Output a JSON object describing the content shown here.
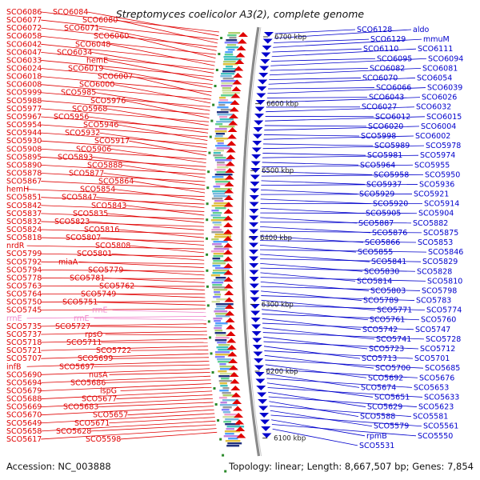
{
  "title": "Streptomyces coelicolor A3(2), complete genome",
  "footer": {
    "accession": "Accession: NC_003888",
    "summary": "Topology: linear; Length: 8,667,507 bp; Genes: 7,854"
  },
  "colors": {
    "left_genes": "#e00000",
    "right_genes": "#0000cc",
    "rna_genes": "#f080c8",
    "backbone": "#8a8a8a",
    "tick": "#2a8a2a"
  },
  "scale_ticks": [
    {
      "label": "6700 kbp",
      "bp": 6700000
    },
    {
      "label": "6600 kbp",
      "bp": 6600000
    },
    {
      "label": "6500 kbp",
      "bp": 6500000
    },
    {
      "label": "6400 kbp",
      "bp": 6400000
    },
    {
      "label": "6300 kbp",
      "bp": 6300000
    },
    {
      "label": "6200 kbp",
      "bp": 6200000
    },
    {
      "label": "6100 kbp",
      "bp": 6100000
    }
  ],
  "left_genes": [
    "SCO6086",
    "SCO6084",
    "SCO6077",
    "SCO6080",
    "SCO6072",
    "SCO6071",
    "SCO6058",
    "SCO6060",
    "SCO6042",
    "SCO6048",
    "SCO6047",
    "SCO6034",
    "SCO6033",
    "hemE",
    "SCO6024",
    "SCO6019",
    "SCO6018",
    "SCO6007",
    "SCO6008",
    "SCO6000",
    "SCO5999",
    "SCO5985",
    "SCO5988",
    "SCO5976",
    "SCO5977",
    "SCO5968",
    "SCO5967",
    "SCO5956",
    "SCO5954",
    "SCO5946",
    "SCO5944",
    "SCO5932",
    "SCO5930",
    "SCO5917",
    "SCO5908",
    "SCO5906",
    "SCO5895",
    "SCO5893",
    "SCO5890",
    "SCO5888",
    "SCO5878",
    "SCO5877",
    "SCO5867",
    "SCO5864",
    "hemH",
    "SCO5854",
    "SCO5851",
    "SCO5847",
    "SCO5842",
    "SCO5843",
    "SCO5837",
    "SCO5835",
    "SCO5832",
    "SCO5823",
    "SCO5824",
    "SCO5816",
    "SCO5818",
    "SCO5807",
    "nrdR",
    "SCO5808",
    "SCO5799",
    "SCO5801",
    "SCO5792",
    "miaA",
    "SCO5794",
    "SCO5779",
    "SCO5778",
    "SCO5781",
    "SCO5763",
    "SCO5762",
    "SCO5764",
    "SCO5749",
    "SCO5750",
    "SCO5751",
    "SCO5745",
    "rrnE",
    "rrnE",
    "rrnE",
    "SCO5735",
    "SCO5727",
    "SCO5737",
    "rpsO",
    "SCO5718",
    "SCO5711",
    "SCO5721",
    "SCO5722",
    "SCO5707",
    "SCO5699",
    "infB",
    "SCO5697",
    "SCO5690",
    "nusA",
    "SCO5694",
    "SCO5686",
    "SCO5679",
    "ispG",
    "SCO5688",
    "SCO5677",
    "SCO5669",
    "SCO5683",
    "SCO5670",
    "SCO5657",
    "SCO5649",
    "SCO5671",
    "SCO5658",
    "SCO5628",
    "SCO5617",
    "SCO5598"
  ],
  "right_genes": [
    "SCO6128",
    "aldo",
    "SCO6129",
    "mmuM",
    "SCO6110",
    "SCO6111",
    "SCO6095",
    "SCO6094",
    "SCO6082",
    "SCO6081",
    "SCO6070",
    "SCO6054",
    "SCO6066",
    "SCO6039",
    "SCO6043",
    "SCO6026",
    "SCO6027",
    "SCO6032",
    "SCO6012",
    "SCO6015",
    "SCO6020",
    "SCO6004",
    "SCO5998",
    "SCO6002",
    "SCO5989",
    "SCO5978",
    "SCO5981",
    "SCO5974",
    "SCO5964",
    "SCO5955",
    "SCO5958",
    "SCO5950",
    "SCO5937",
    "SCO5936",
    "SCO5929",
    "SCO5921",
    "SCO5920",
    "SCO5914",
    "SCO5905",
    "SCO5904",
    "SCO5887",
    "SCO5882",
    "SCO5876",
    "SCO5875",
    "SCO5866",
    "SCO5853",
    "SCO5855",
    "SCO5846",
    "SCO5841",
    "SCO5829",
    "SCO5830",
    "SCO5828",
    "SCO5814",
    "SCO5810",
    "SCO5803",
    "SCO5798",
    "SCO5789",
    "SCO5783",
    "SCO5771",
    "SCO5774",
    "SCO5761",
    "SCO5760",
    "SCO5742",
    "SCO5747",
    "SCO5741",
    "SCO5728",
    "SCO5723",
    "SCO5712",
    "SCO5713",
    "SCO5701",
    "SCO5700",
    "SCO5685",
    "SCO5692",
    "SCO5676",
    "SCO5674",
    "SCO5653",
    "SCO5651",
    "SCO5633",
    "SCO5629",
    "SCO5623",
    "SCO5588",
    "SCO5581",
    "SCO5579",
    "SCO5561",
    "rpmB",
    "SCO5550",
    "SCO5531"
  ]
}
